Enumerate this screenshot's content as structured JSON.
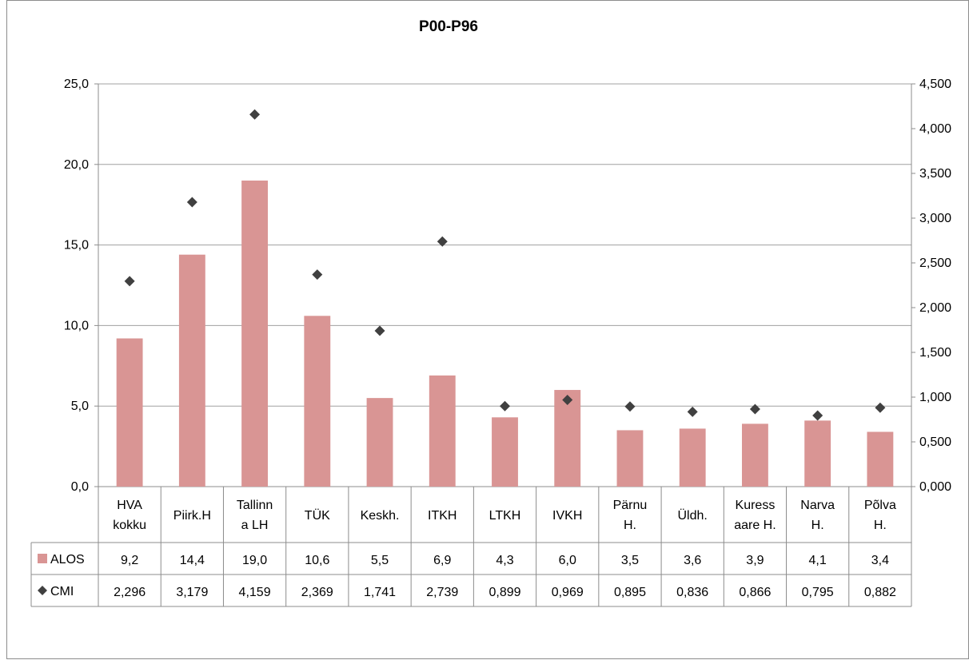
{
  "chart_data": {
    "type": "bar",
    "title": "P00-P96",
    "categories": [
      [
        "HVA",
        "kokku"
      ],
      [
        "Piirk.H"
      ],
      [
        "Tallinn",
        "a LH"
      ],
      [
        "TÜK"
      ],
      [
        "Keskh."
      ],
      [
        "ITKH"
      ],
      [
        "LTKH"
      ],
      [
        "IVKH"
      ],
      [
        "Pärnu",
        "H."
      ],
      [
        "Üldh."
      ],
      [
        "Kuress",
        "aare H."
      ],
      [
        "Narva",
        "H."
      ],
      [
        "Põlva",
        "H."
      ]
    ],
    "series": [
      {
        "name": "ALOS",
        "type": "bar",
        "axis": "left",
        "color": "#d99594",
        "values": [
          9.2,
          14.4,
          19.0,
          10.6,
          5.5,
          6.9,
          4.3,
          6.0,
          3.5,
          3.6,
          3.9,
          4.1,
          3.4
        ],
        "labels": [
          "9,2",
          "14,4",
          "19,0",
          "10,6",
          "5,5",
          "6,9",
          "4,3",
          "6,0",
          "3,5",
          "3,6",
          "3,9",
          "4,1",
          "3,4"
        ]
      },
      {
        "name": "CMI",
        "type": "scatter",
        "axis": "right",
        "color": "#404040",
        "values": [
          2.296,
          3.179,
          4.159,
          2.369,
          1.741,
          2.739,
          0.899,
          0.969,
          0.895,
          0.836,
          0.866,
          0.795,
          0.882
        ],
        "labels": [
          "2,296",
          "3,179",
          "4,159",
          "2,369",
          "1,741",
          "2,739",
          "0,899",
          "0,969",
          "0,895",
          "0,836",
          "0,866",
          "0,795",
          "0,882"
        ]
      }
    ],
    "y_left": {
      "ylim": [
        0,
        25
      ],
      "ticks": [
        0,
        5,
        10,
        15,
        20,
        25
      ],
      "tick_labels": [
        "0,0",
        "5,0",
        "10,0",
        "15,0",
        "20,0",
        "25,0"
      ]
    },
    "y_right": {
      "ylim": [
        0,
        4.5
      ],
      "ticks": [
        0,
        0.5,
        1,
        1.5,
        2,
        2.5,
        3,
        3.5,
        4,
        4.5
      ],
      "tick_labels": [
        "0,000",
        "0,500",
        "1,000",
        "1,500",
        "2,000",
        "2,500",
        "3,000",
        "3,500",
        "4,000",
        "4,500"
      ]
    },
    "grid": true,
    "legend": "data-table"
  }
}
